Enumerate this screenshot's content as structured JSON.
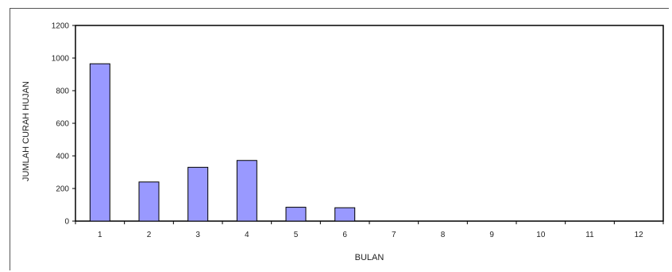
{
  "chart_data": {
    "type": "bar",
    "categories": [
      "1",
      "2",
      "3",
      "4",
      "5",
      "6",
      "7",
      "8",
      "9",
      "10",
      "11",
      "12"
    ],
    "values": [
      965,
      240,
      330,
      372,
      85,
      82,
      0,
      0,
      0,
      0,
      0,
      0
    ],
    "xlabel": "BULAN",
    "ylabel": "JUMLAH CURAH HUJAN",
    "ylim": [
      0,
      1200
    ],
    "yticks": [
      0,
      200,
      400,
      600,
      800,
      1000,
      1200
    ],
    "grid": false,
    "legend": "none",
    "bar_color": "#9999ff",
    "bar_border": "#000000"
  }
}
